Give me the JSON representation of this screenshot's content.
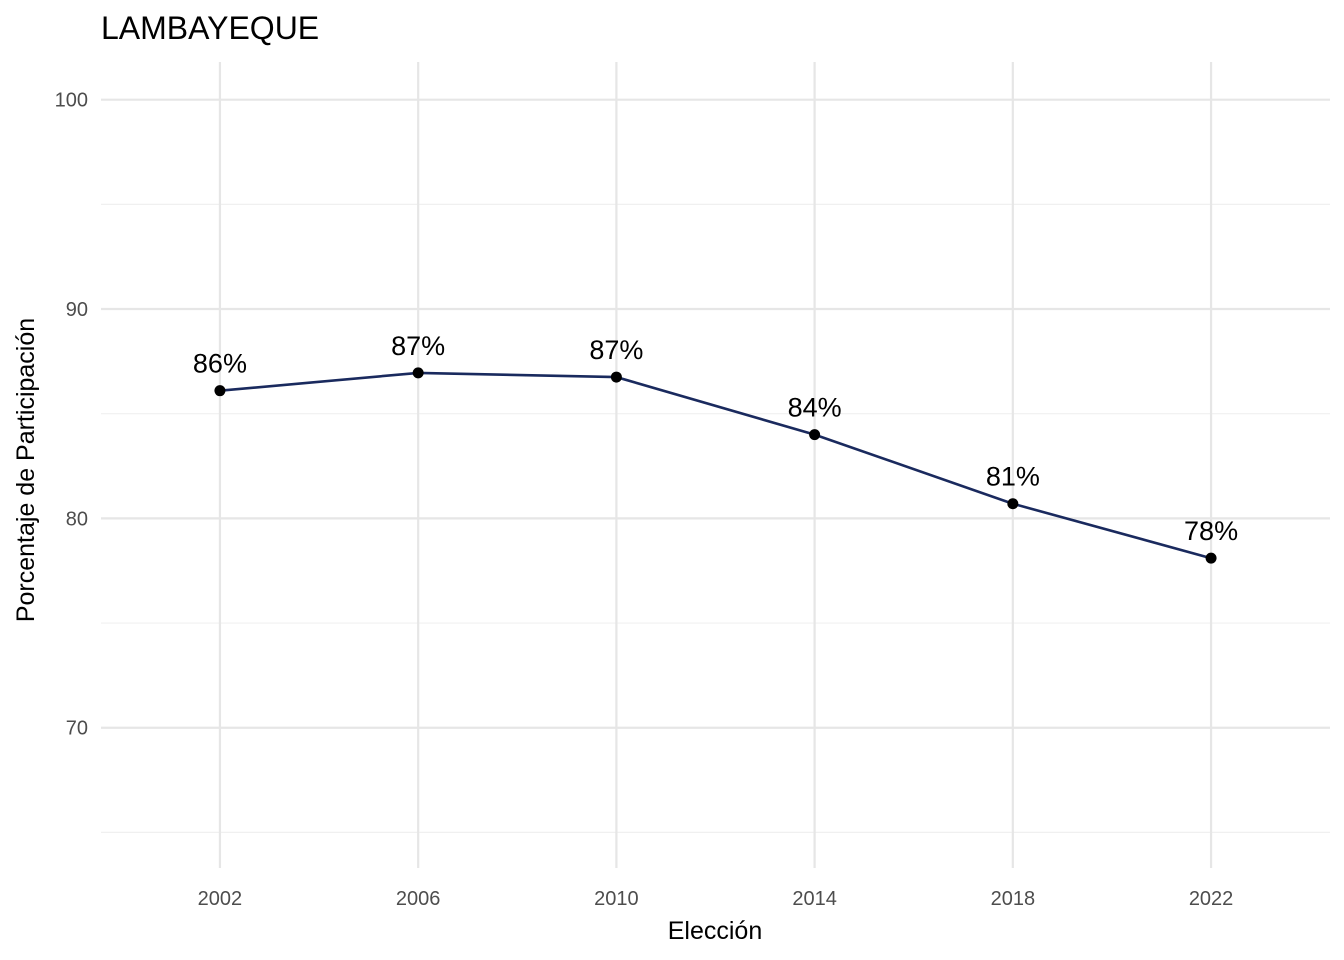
{
  "chart_data": {
    "type": "line",
    "title": "LAMBAYEQUE",
    "xlabel": "Elección",
    "ylabel": "Porcentaje de Participación",
    "x": [
      2002,
      2006,
      2010,
      2014,
      2018,
      2022
    ],
    "y": [
      86.1,
      86.95,
      86.75,
      84.0,
      80.7,
      78.1
    ],
    "data_labels": [
      "86%",
      "87%",
      "87%",
      "84%",
      "81%",
      "78%"
    ],
    "x_ticks": [
      "2002",
      "2006",
      "2010",
      "2014",
      "2018",
      "2022"
    ],
    "y_ticks": [
      "70",
      "80",
      "90",
      "100"
    ],
    "xlim": [
      1999.6,
      2024.4
    ],
    "ylim": [
      63.3,
      101.8
    ],
    "grid": true,
    "line_color": "#1a2a5e",
    "point_color": "#000000"
  }
}
